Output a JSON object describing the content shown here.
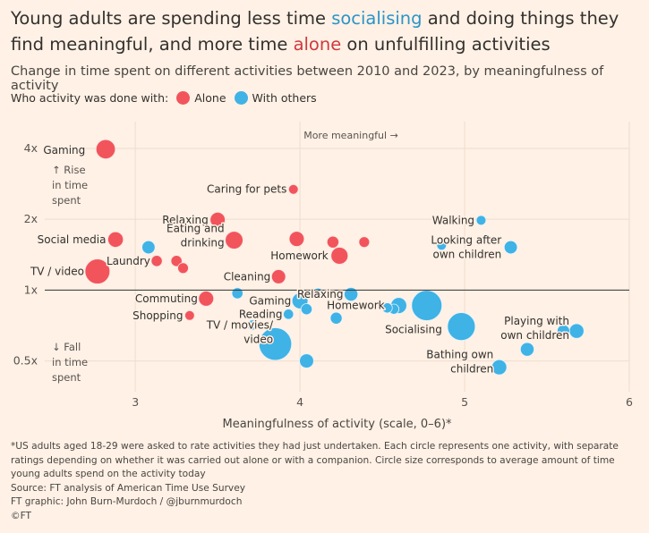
{
  "header": {
    "title_part1": "Young adults are spending less time ",
    "title_socialising": "socialising",
    "title_part2": " and doing things they find meaningful, and more time ",
    "title_alone": "alone",
    "title_part3": " on unfulfilling activities",
    "subtitle": "Change in time spent on different activities between 2010 and 2023, by meaningfulness of activity"
  },
  "legend": {
    "label": "Who activity was done with:",
    "alone": "Alone",
    "others": "With others"
  },
  "colors": {
    "alone": "#f2545b",
    "others": "#3fb2e6",
    "background": "#fff1e5"
  },
  "chart_data": {
    "type": "scatter",
    "xlabel": "Meaningfulness of activity (scale, 0–6)*",
    "ylabel": "",
    "xlim": [
      2.45,
      6.0
    ],
    "ylim": [
      0.37,
      5.2
    ],
    "y_scale": "log",
    "x_ticks": [
      "3",
      "4",
      "5",
      "6"
    ],
    "y_ticks": [
      {
        "value": 4,
        "label": "4x"
      },
      {
        "value": 2,
        "label": "2x"
      },
      {
        "value": 1,
        "label": "1x"
      },
      {
        "value": 0.5,
        "label": "0.5x"
      }
    ],
    "annotations": {
      "more_meaningful": "More meaningful →",
      "rise": [
        "↑ Rise",
        "in time",
        "spent"
      ],
      "fall": [
        "↓ Fall",
        "in time",
        "spent"
      ]
    },
    "series": [
      {
        "name": "Alone",
        "points": [
          {
            "label": "Gaming",
            "x": 2.82,
            "y": 3.97,
            "size": 2.2
          },
          {
            "label": "Caring for pets",
            "x": 3.96,
            "y": 2.68,
            "size": 0.15
          },
          {
            "label": "Relaxing",
            "x": 3.5,
            "y": 1.99,
            "size": 1.0
          },
          {
            "label": "Social media",
            "x": 2.88,
            "y": 1.64,
            "size": 1.1
          },
          {
            "label": "Eating and drinking",
            "x": 3.6,
            "y": 1.63,
            "size": 1.7
          },
          {
            "label": "",
            "x": 3.98,
            "y": 1.65,
            "size": 1.0
          },
          {
            "label": "",
            "x": 4.2,
            "y": 1.6,
            "size": 0.4
          },
          {
            "label": "",
            "x": 4.39,
            "y": 1.6,
            "size": 0.25
          },
          {
            "label": "Homework",
            "x": 4.24,
            "y": 1.4,
            "size": 1.5
          },
          {
            "label": "Laundry",
            "x": 3.13,
            "y": 1.33,
            "size": 0.3
          },
          {
            "label": "",
            "x": 3.25,
            "y": 1.33,
            "size": 0.3
          },
          {
            "label": "",
            "x": 3.29,
            "y": 1.24,
            "size": 0.25
          },
          {
            "label": "TV / video",
            "x": 2.77,
            "y": 1.2,
            "size": 4.5
          },
          {
            "label": "Cleaning",
            "x": 3.87,
            "y": 1.14,
            "size": 0.8
          },
          {
            "label": "Commuting",
            "x": 3.43,
            "y": 0.92,
            "size": 1.0
          },
          {
            "label": "Shopping",
            "x": 3.33,
            "y": 0.78,
            "size": 0.15
          }
        ]
      },
      {
        "name": "With others",
        "points": [
          {
            "label": "",
            "x": 3.08,
            "y": 1.52,
            "size": 0.6
          },
          {
            "label": "Walking",
            "x": 5.1,
            "y": 1.98,
            "size": 0.15
          },
          {
            "label": "Looking after own children",
            "x": 5.28,
            "y": 1.52,
            "size": 0.6
          },
          {
            "label": "",
            "x": 4.86,
            "y": 1.55,
            "size": 0.15
          },
          {
            "label": "Relaxing",
            "x": 4.31,
            "y": 0.96,
            "size": 0.7
          },
          {
            "label": "",
            "x": 4.11,
            "y": 0.97,
            "size": 0.2
          },
          {
            "label": "",
            "x": 3.62,
            "y": 0.97,
            "size": 0.3
          },
          {
            "label": "Gaming",
            "x": 4.0,
            "y": 0.9,
            "size": 1.2
          },
          {
            "label": "",
            "x": 4.04,
            "y": 0.83,
            "size": 0.3
          },
          {
            "label": "Homework",
            "x": 4.6,
            "y": 0.86,
            "size": 1.2
          },
          {
            "label": "",
            "x": 4.57,
            "y": 0.83,
            "size": 0.2
          },
          {
            "label": "",
            "x": 4.53,
            "y": 0.84,
            "size": 0.2
          },
          {
            "label": "Socialising",
            "x": 4.77,
            "y": 0.86,
            "size": 7.5
          },
          {
            "label": "Reading",
            "x": 3.93,
            "y": 0.79,
            "size": 0.2
          },
          {
            "label": "",
            "x": 4.22,
            "y": 0.76,
            "size": 0.4
          },
          {
            "label": "Playing with own children",
            "x": 5.68,
            "y": 0.67,
            "size": 0.9
          },
          {
            "label": "",
            "x": 5.6,
            "y": 0.67,
            "size": 0.5
          },
          {
            "label": "TV / movies/ video",
            "x": 3.71,
            "y": 0.71,
            "size": 0.2
          },
          {
            "label": "",
            "x": 3.85,
            "y": 0.59,
            "size": 9.0
          },
          {
            "label": "",
            "x": 4.98,
            "y": 0.7,
            "size": 6.0
          },
          {
            "label": "",
            "x": 5.38,
            "y": 0.56,
            "size": 0.7
          },
          {
            "label": "",
            "x": 4.04,
            "y": 0.5,
            "size": 0.8
          },
          {
            "label": "Bathing own children",
            "x": 5.21,
            "y": 0.47,
            "size": 1.0
          }
        ]
      }
    ]
  },
  "footer": {
    "note1": "*US adults aged 18-29 were asked to rate activities they had just undertaken. Each circle represents one activity, with separate",
    "note2": "ratings depending on whether it was carried out alone or with a companion. Circle size corresponds to average amount of time",
    "note3": "young adults spend on the activity today",
    "source": "Source: FT analysis of American Time Use Survey",
    "credit": "FT graphic: John Burn-Murdoch / @jburnmurdoch",
    "copyright": "©FT"
  }
}
